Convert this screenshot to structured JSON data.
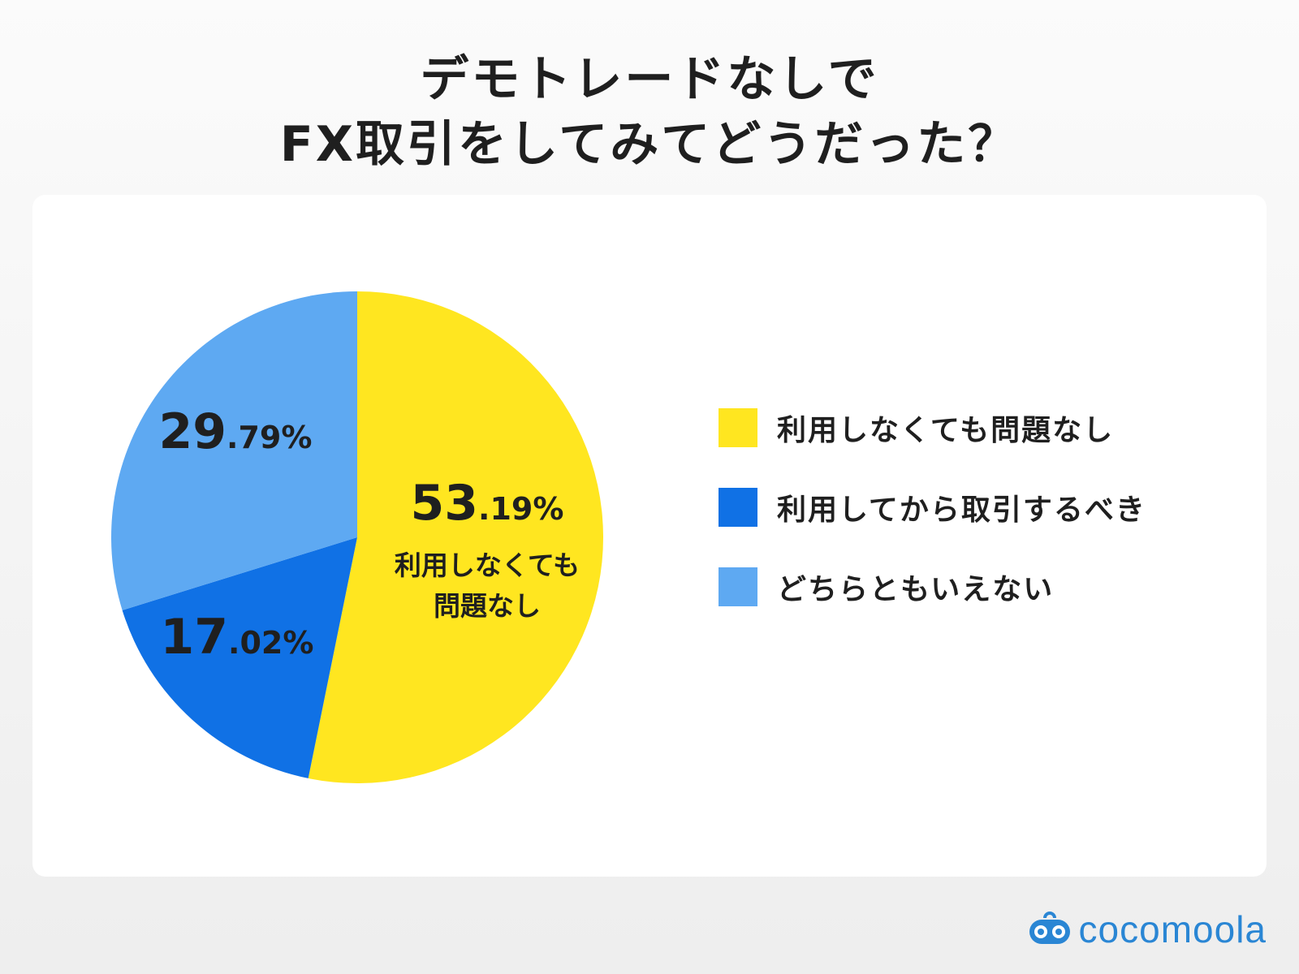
{
  "title": {
    "line1": "デモトレードなしで",
    "line2": "FX取引をしてみてどうだった？"
  },
  "chart_data": {
    "type": "pie",
    "slices": [
      {
        "label": "利用しなくても問題なし",
        "value": 53.19,
        "int": "53",
        "dec": ".19%",
        "color": "#FFE620",
        "inner_label": [
          "利用しなくても",
          "問題なし"
        ]
      },
      {
        "label": "利用してから取引するべき",
        "value": 17.02,
        "int": "17",
        "dec": ".02%",
        "color": "#1071E5"
      },
      {
        "label": "どちらともいえない",
        "value": 29.79,
        "int": "29",
        "dec": ".79%",
        "color": "#5EA9F2"
      }
    ],
    "start": "12 o'clock",
    "direction": "clockwise",
    "legend_position": "right"
  },
  "logo": {
    "text": "cocomoola",
    "icon": "cocomoola-logo-icon",
    "color": "#2a86d4"
  }
}
